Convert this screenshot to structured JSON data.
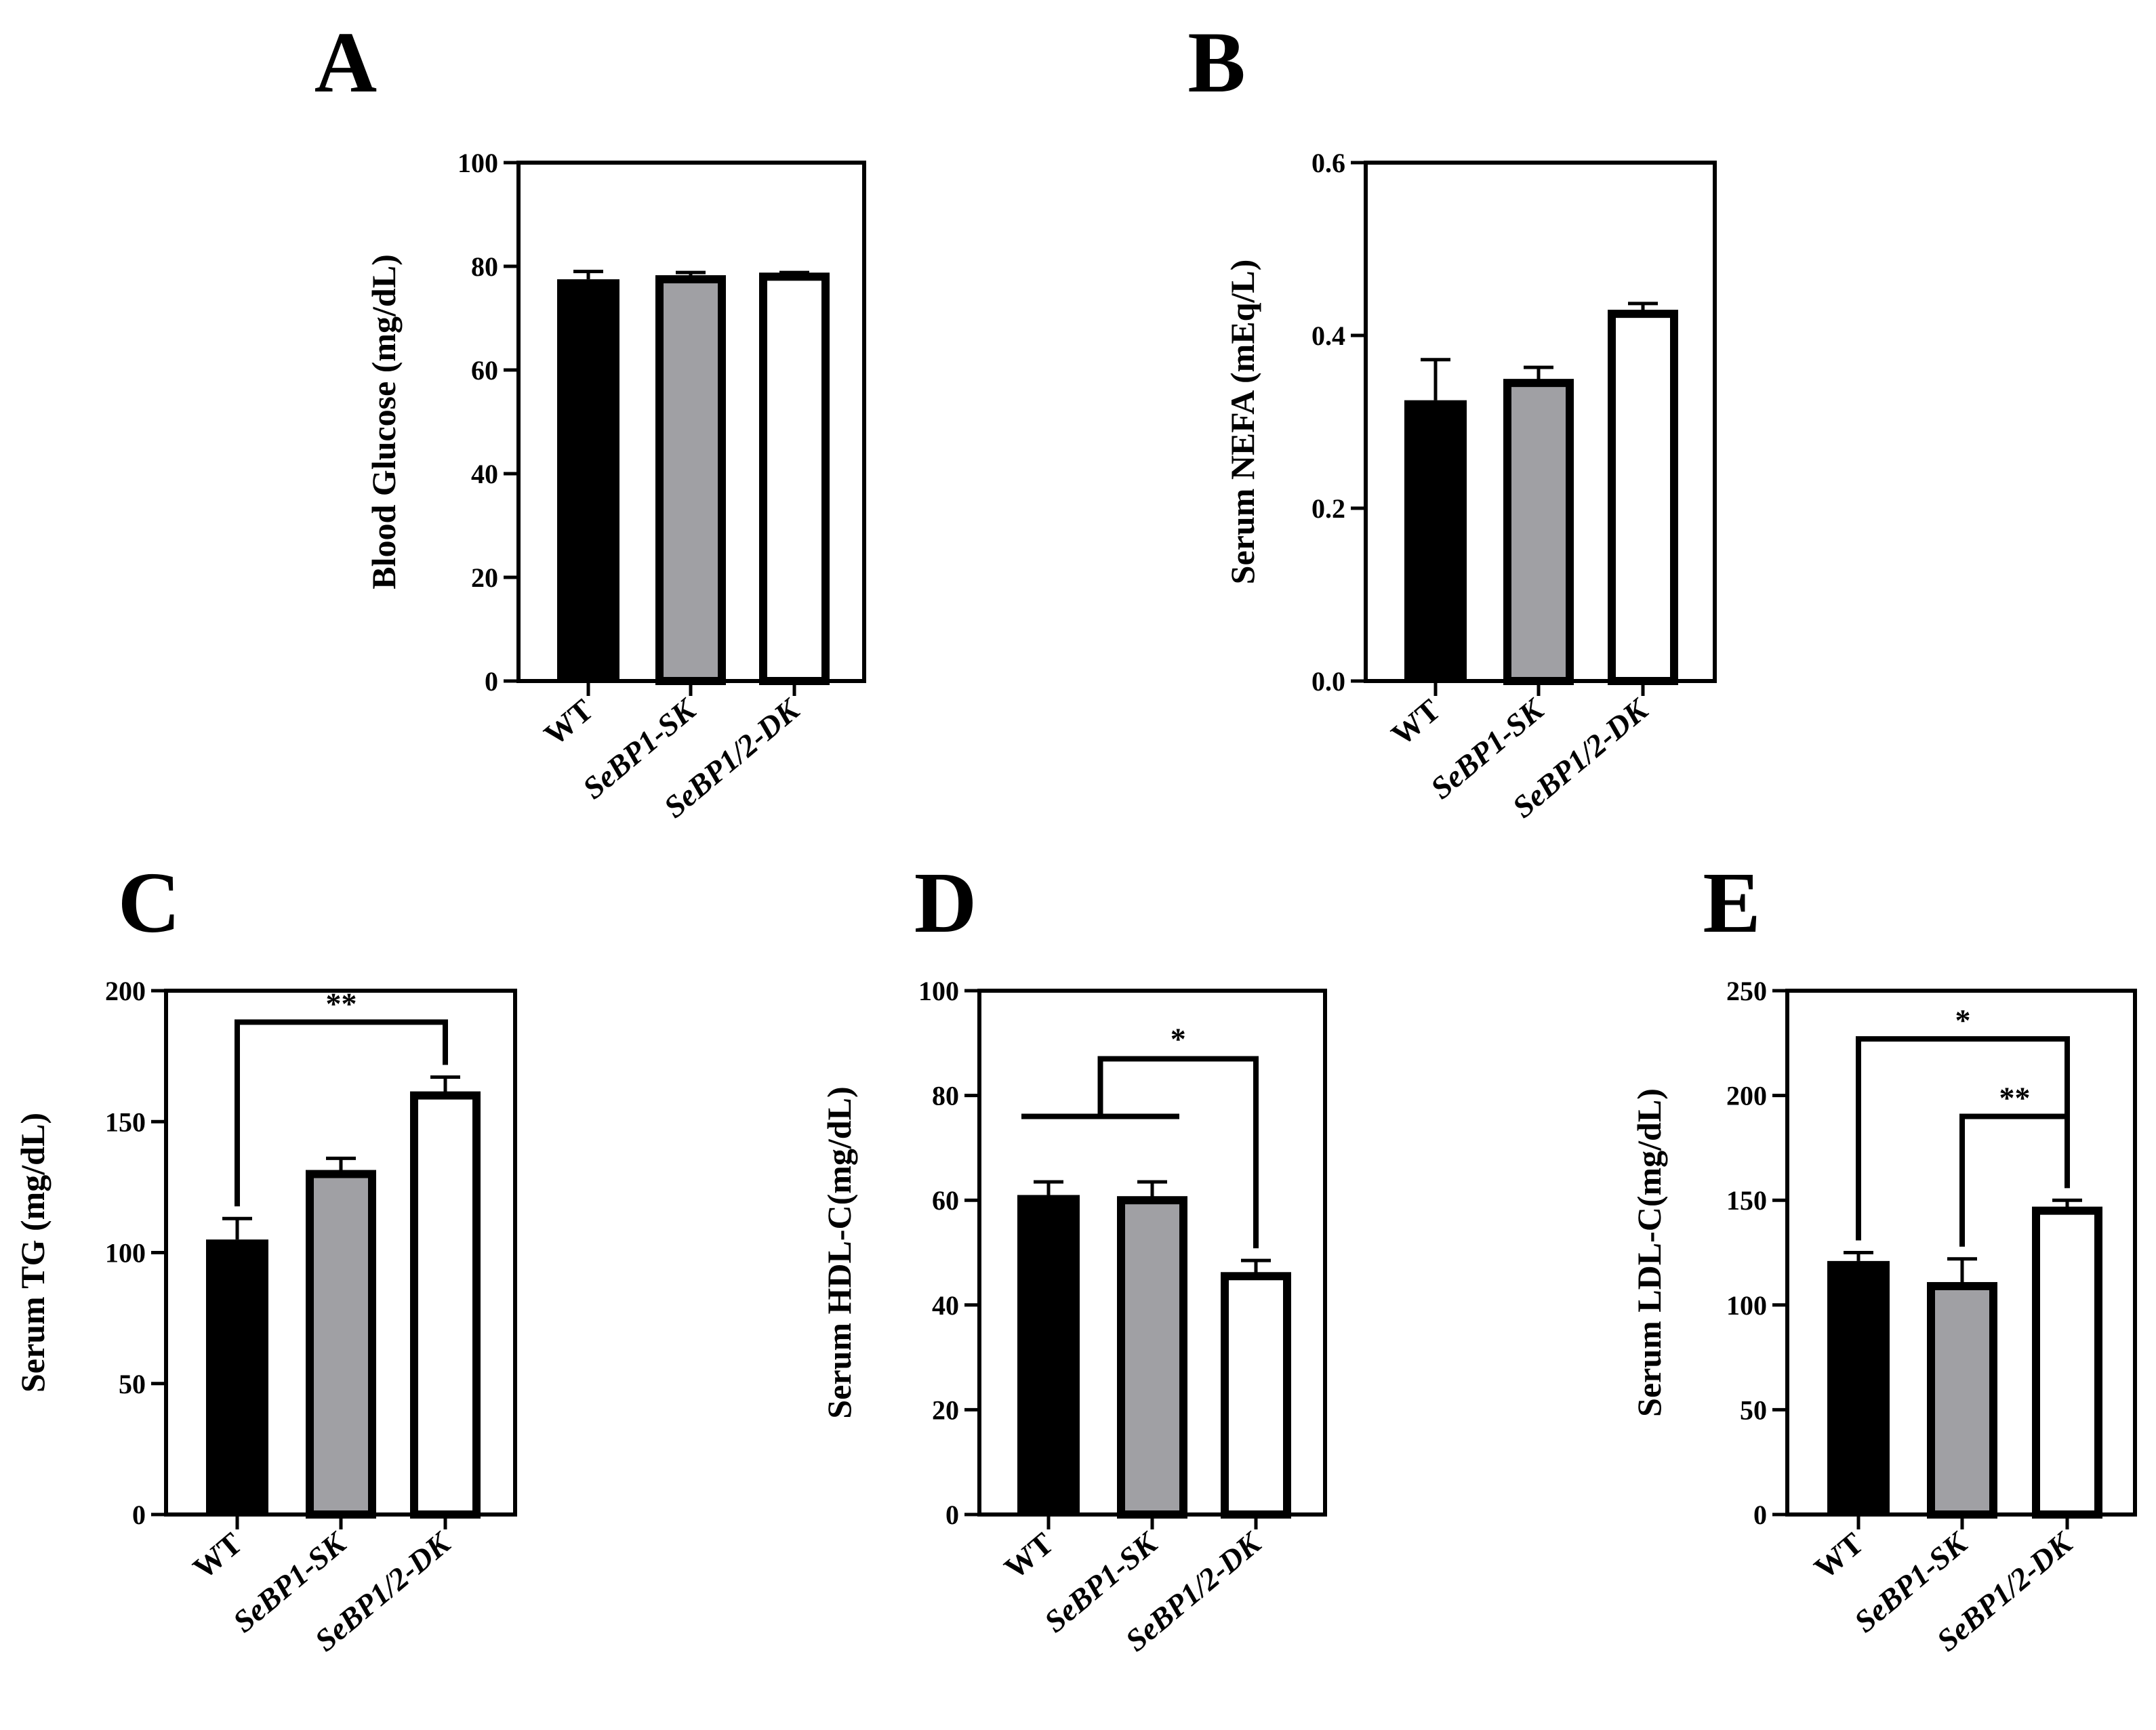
{
  "chart_data": [
    {
      "panel": "A",
      "type": "bar",
      "ylabel": "Blood Glucose (mg/dL)",
      "ylim": [
        0,
        100
      ],
      "yticks": [
        0,
        20,
        40,
        60,
        80,
        100
      ],
      "categories": [
        "WT",
        "SeBP1-SK",
        "SeBP1/2-DK"
      ],
      "values": [
        77.5,
        77.5,
        78
      ],
      "errors": [
        1.5,
        1.3,
        0.8
      ],
      "bar_colors": [
        "#000000",
        "#a0a0a4",
        "#ffffff"
      ],
      "significance": []
    },
    {
      "panel": "B",
      "type": "bar",
      "ylabel": "Serum NEFA (mEq/L)",
      "ylim": [
        0,
        0.6
      ],
      "yticks": [
        "0.0",
        "0.2",
        "0.4",
        "0.6"
      ],
      "categories": [
        "WT",
        "SeBP1-SK",
        "SeBP1/2-DK"
      ],
      "values": [
        0.325,
        0.345,
        0.425
      ],
      "errors": [
        0.047,
        0.018,
        0.012
      ],
      "bar_colors": [
        "#000000",
        "#a0a0a4",
        "#ffffff"
      ],
      "significance": []
    },
    {
      "panel": "C",
      "type": "bar",
      "ylabel": "Serum TG (mg/dL)",
      "ylim": [
        0,
        200
      ],
      "yticks": [
        0,
        50,
        100,
        150,
        200
      ],
      "categories": [
        "WT",
        "SeBP1-SK",
        "SeBP1/2-DK"
      ],
      "values": [
        105,
        130,
        160
      ],
      "errors": [
        8,
        6,
        7
      ],
      "bar_colors": [
        "#000000",
        "#a0a0a4",
        "#ffffff"
      ],
      "significance": [
        {
          "type": "pair",
          "from": 0,
          "to": 2,
          "level": 188,
          "label": "**"
        }
      ]
    },
    {
      "panel": "D",
      "type": "bar",
      "ylabel": "Serum HDL-C(mg/dL)",
      "ylim": [
        0,
        100
      ],
      "yticks": [
        0,
        20,
        40,
        60,
        80,
        100
      ],
      "categories": [
        "WT",
        "SeBP1-SK",
        "SeBP1/2-DK"
      ],
      "values": [
        61,
        60,
        45.5
      ],
      "errors": [
        2.5,
        3.5,
        3
      ],
      "bar_colors": [
        "#000000",
        "#a0a0a4",
        "#ffffff"
      ],
      "significance": [
        {
          "type": "group",
          "group": [
            0,
            1
          ],
          "group_level": 76,
          "to": 2,
          "level": 87,
          "label": "*"
        }
      ]
    },
    {
      "panel": "E",
      "type": "bar",
      "ylabel": "Serum LDL-C(mg/dL)",
      "ylim": [
        0,
        250
      ],
      "yticks": [
        0,
        50,
        100,
        150,
        200,
        250
      ],
      "categories": [
        "WT",
        "SeBP1-SK",
        "SeBP1/2-DK"
      ],
      "values": [
        121,
        109,
        145
      ],
      "errors": [
        4,
        13,
        5
      ],
      "bar_colors": [
        "#000000",
        "#a0a0a4",
        "#ffffff"
      ],
      "significance": [
        {
          "type": "pair",
          "from": 0,
          "to": 2,
          "level": 227,
          "label": "*"
        },
        {
          "type": "pair",
          "from": 1,
          "to": 2,
          "level": 190,
          "label": "**"
        }
      ]
    }
  ]
}
